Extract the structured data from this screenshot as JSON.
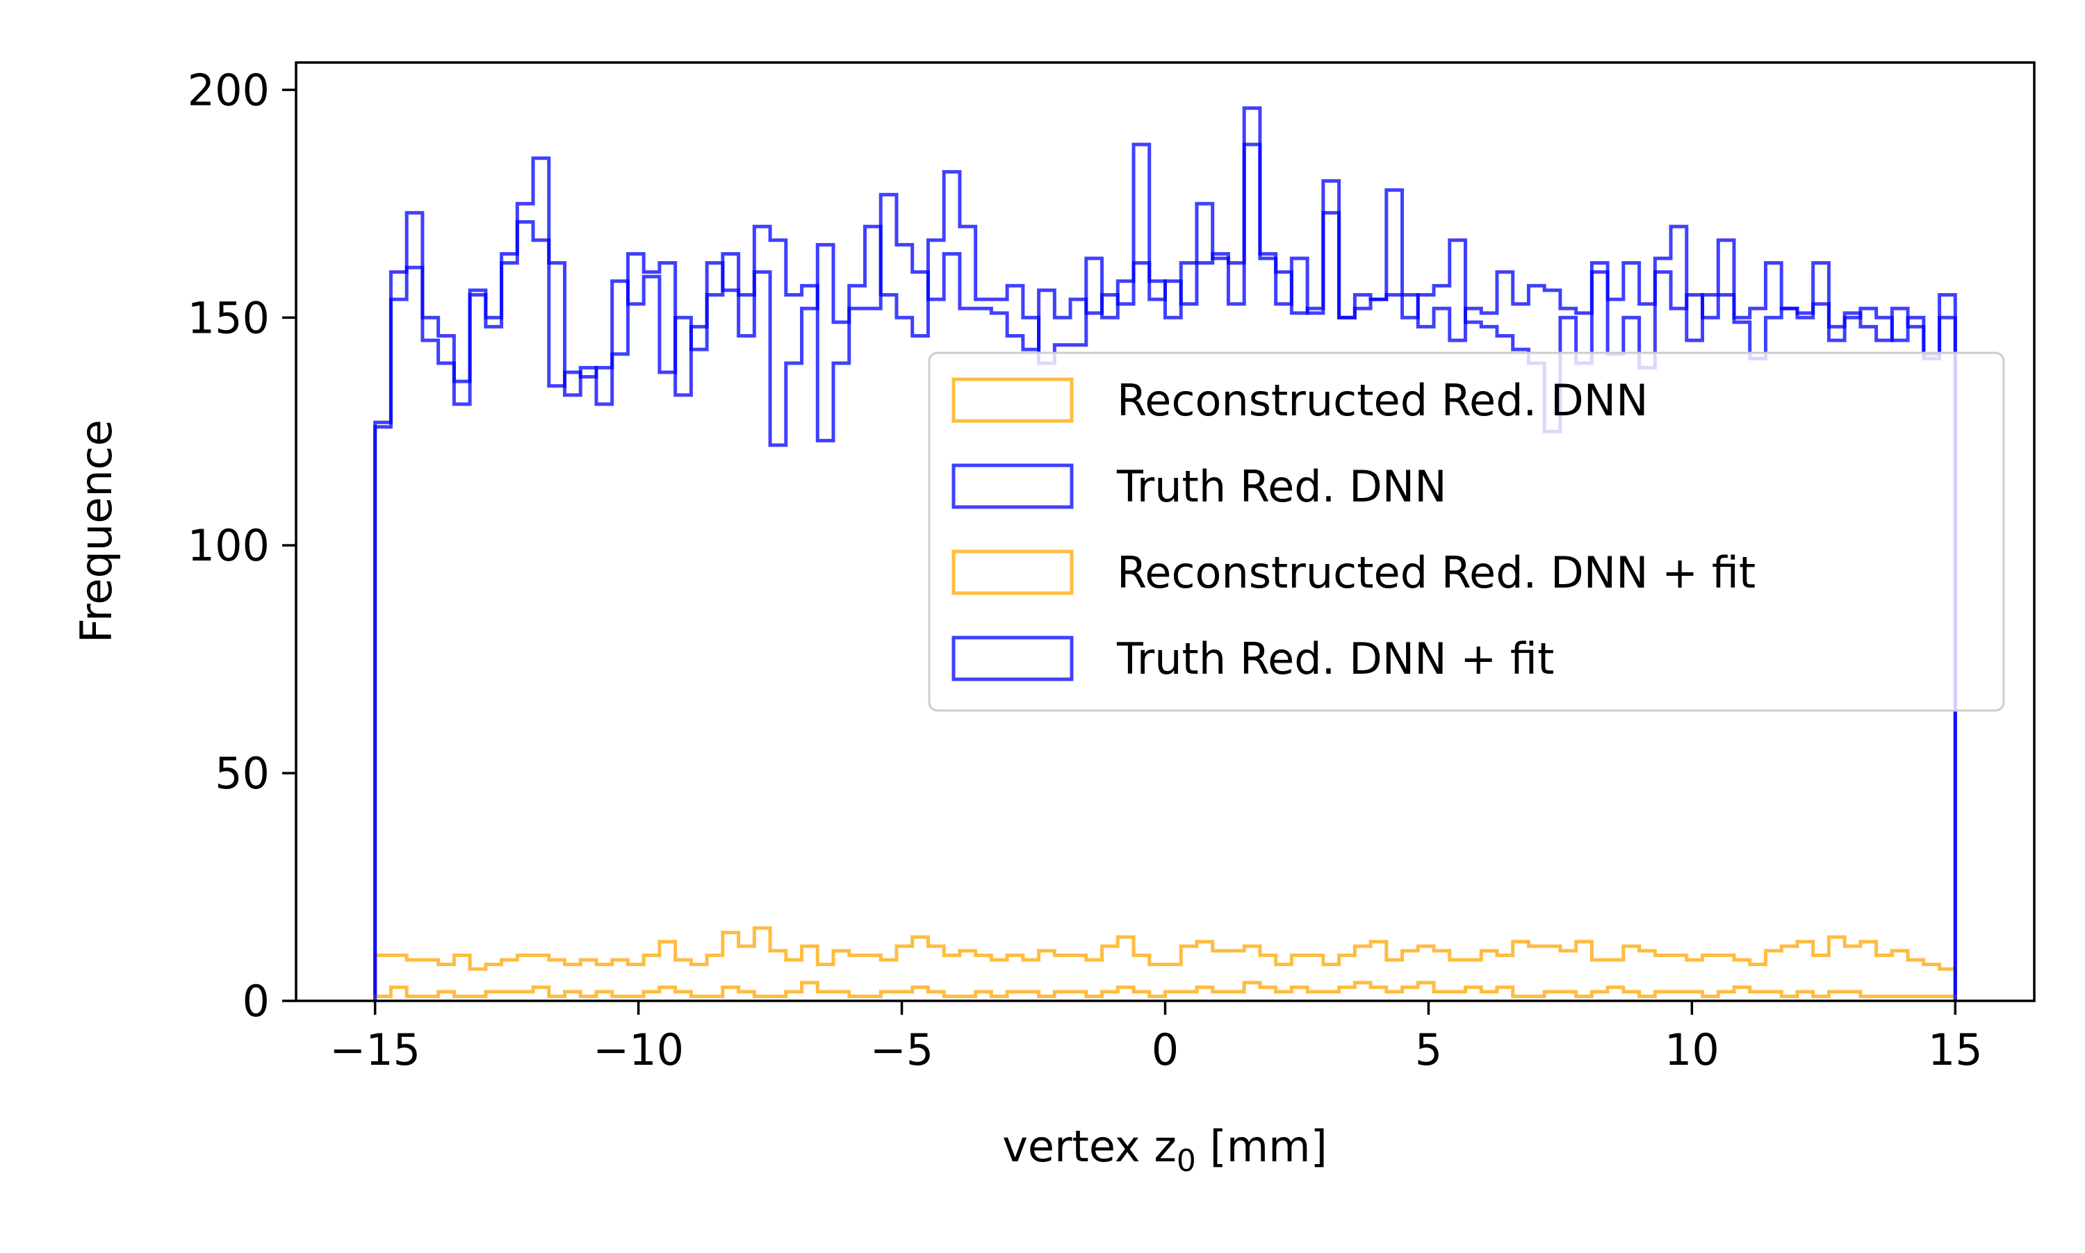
{
  "chart_data": {
    "type": "histogram",
    "xlabel": "vertex z",
    "xlabel_sub": "0",
    "xlabel_unit": " [mm]",
    "ylabel": "Frequence",
    "xlim": [
      -16.5,
      16.5
    ],
    "ylim": [
      0,
      206
    ],
    "xticks": [
      -15,
      -10,
      -5,
      0,
      5,
      10,
      15
    ],
    "xtick_labels": [
      "−15",
      "−10",
      "−5",
      "0",
      "5",
      "10",
      "15"
    ],
    "yticks": [
      0,
      50,
      100,
      150,
      200
    ],
    "ytick_labels": [
      "0",
      "50",
      "100",
      "150",
      "200"
    ],
    "grid": false,
    "legend_position": "center-right",
    "bin_edges_range": [
      -15,
      15
    ],
    "n_bins": 100,
    "series": [
      {
        "name": "Reconstructed Red. DNN",
        "color": "#FFA500",
        "values": [
          10,
          10,
          9,
          9,
          8,
          10,
          7,
          8,
          9,
          10,
          10,
          9,
          8,
          9,
          8,
          9,
          8,
          10,
          13,
          9,
          8,
          10,
          15,
          12,
          16,
          11,
          9,
          12,
          8,
          11,
          10,
          10,
          9,
          12,
          14,
          12,
          10,
          11,
          10,
          9,
          10,
          9,
          11,
          10,
          10,
          9,
          12,
          14,
          10,
          8,
          8,
          12,
          13,
          11,
          11,
          12,
          10,
          8,
          10,
          10,
          8,
          10,
          12,
          13,
          9,
          11,
          12,
          11,
          9,
          9,
          11,
          10,
          13,
          12,
          12,
          11,
          13,
          9,
          9,
          12,
          11,
          10,
          10,
          9,
          10,
          10,
          9,
          8,
          11,
          12,
          13,
          10,
          14,
          12,
          13,
          10,
          11,
          9,
          8,
          7
        ]
      },
      {
        "name": "Truth Red. DNN",
        "color": "#0000FF",
        "values": [
          126,
          154,
          161,
          150,
          146,
          136,
          155,
          148,
          162,
          171,
          167,
          135,
          138,
          137,
          139,
          158,
          153,
          159,
          138,
          150,
          143,
          162,
          156,
          146,
          160,
          122,
          140,
          152,
          166,
          149,
          152,
          152,
          177,
          166,
          160,
          154,
          164,
          152,
          152,
          151,
          146,
          143,
          156,
          150,
          154,
          151,
          155,
          153,
          188,
          154,
          158,
          153,
          162,
          164,
          153,
          188,
          163,
          160,
          151,
          152,
          173,
          150,
          155,
          154,
          155,
          155,
          148,
          152,
          145,
          152,
          151,
          160,
          153,
          157,
          156,
          152,
          151,
          162,
          154,
          162,
          153,
          160,
          152,
          155,
          150,
          155,
          149,
          141,
          150,
          152,
          151,
          153,
          148,
          151,
          148,
          145,
          152,
          148,
          141,
          150
        ]
      },
      {
        "name": "Reconstructed Red. DNN + fit",
        "color": "#FFA500",
        "values": [
          1,
          3,
          1,
          1,
          2,
          1,
          1,
          2,
          2,
          2,
          3,
          1,
          2,
          1,
          2,
          1,
          1,
          2,
          3,
          2,
          1,
          1,
          3,
          2,
          1,
          1,
          2,
          4,
          2,
          2,
          1,
          1,
          2,
          2,
          3,
          2,
          1,
          1,
          2,
          1,
          2,
          2,
          1,
          2,
          2,
          1,
          2,
          3,
          2,
          1,
          2,
          2,
          3,
          2,
          2,
          4,
          3,
          2,
          3,
          2,
          2,
          3,
          4,
          3,
          2,
          3,
          4,
          2,
          2,
          3,
          2,
          3,
          1,
          1,
          2,
          2,
          1,
          2,
          3,
          2,
          1,
          2,
          2,
          2,
          1,
          2,
          3,
          2,
          2,
          1,
          2,
          1,
          2,
          2,
          1,
          1,
          1,
          1,
          1,
          1
        ]
      },
      {
        "name": "Truth Red. DNN + fit",
        "color": "#0000FF",
        "values": [
          127,
          160,
          173,
          145,
          140,
          131,
          156,
          150,
          164,
          175,
          185,
          162,
          133,
          139,
          131,
          142,
          164,
          160,
          162,
          133,
          148,
          155,
          164,
          155,
          170,
          167,
          155,
          157,
          123,
          140,
          157,
          170,
          155,
          150,
          146,
          167,
          182,
          170,
          154,
          154,
          157,
          150,
          140,
          144,
          144,
          163,
          150,
          158,
          162,
          158,
          150,
          162,
          175,
          163,
          162,
          196,
          164,
          153,
          163,
          151,
          180,
          150,
          152,
          154,
          178,
          150,
          155,
          157,
          167,
          149,
          148,
          146,
          143,
          140,
          125,
          150,
          140,
          160,
          142,
          150,
          139,
          163,
          170,
          145,
          155,
          167,
          150,
          152,
          162,
          152,
          150,
          162,
          145,
          150,
          152,
          150,
          145,
          150,
          142,
          155
        ]
      }
    ]
  }
}
